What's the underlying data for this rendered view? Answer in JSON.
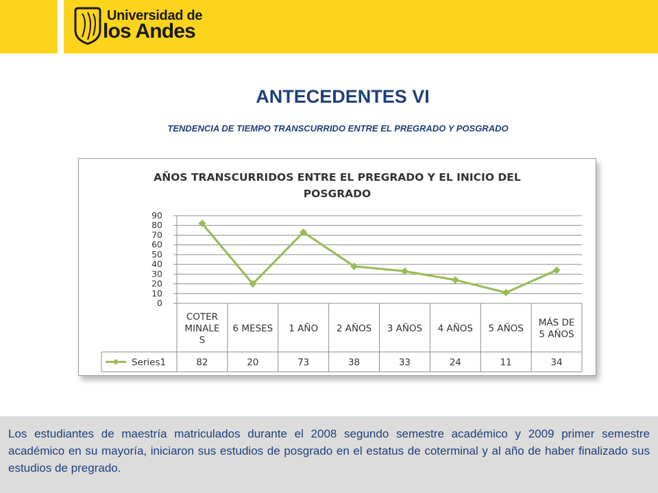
{
  "brand": {
    "line1": "Universidad de",
    "line2": "los Andes",
    "color": "#FDD41C"
  },
  "page": {
    "title": "ANTECEDENTES VI",
    "subtitle": "TENDENCIA DE TIEMPO TRANSCURRIDO ENTRE EL PREGRADO Y POSGRADO",
    "title_color": "#1f3f7a"
  },
  "chart_data": {
    "type": "line",
    "title": "AÑOS TRANSCURRIDOS ENTRE EL PREGRADO Y EL INICIO DEL POSGRADO",
    "title_lines": [
      "AÑOS TRANSCURRIDOS ENTRE EL PREGRADO Y EL INICIO DEL",
      "POSGRADO"
    ],
    "categories": [
      "COTERMINALES",
      "6 MESES",
      "1 AÑO",
      "2 AÑOS",
      "3 AÑOS",
      "4 AÑOS",
      "5 AÑOS",
      "MÁS DE 5 AÑOS"
    ],
    "category_lines": [
      [
        "COTER",
        "MINALE",
        "S"
      ],
      [
        "6 MESES"
      ],
      [
        "1 AÑO"
      ],
      [
        "2 AÑOS"
      ],
      [
        "3 AÑOS"
      ],
      [
        "4 AÑOS"
      ],
      [
        "5 AÑOS"
      ],
      [
        "MÁS DE",
        "5 AÑOS"
      ]
    ],
    "series": [
      {
        "name": "Series1",
        "values": [
          82,
          20,
          73,
          38,
          33,
          24,
          11,
          34
        ],
        "color": "#9BBB59"
      }
    ],
    "ylim": [
      0,
      90
    ],
    "yticks": [
      0,
      10,
      20,
      30,
      40,
      50,
      60,
      70,
      80,
      90
    ],
    "grid": true,
    "data_table": true,
    "xlabel": "",
    "ylabel": ""
  },
  "footer": {
    "text": "Los estudiantes de maestría matriculados durante el 2008 segundo semestre académico y 2009 primer semestre académico en su mayoría, iniciaron sus estudios de posgrado en el estatus de coterminal y al año de haber finalizado sus estudios de pregrado."
  }
}
